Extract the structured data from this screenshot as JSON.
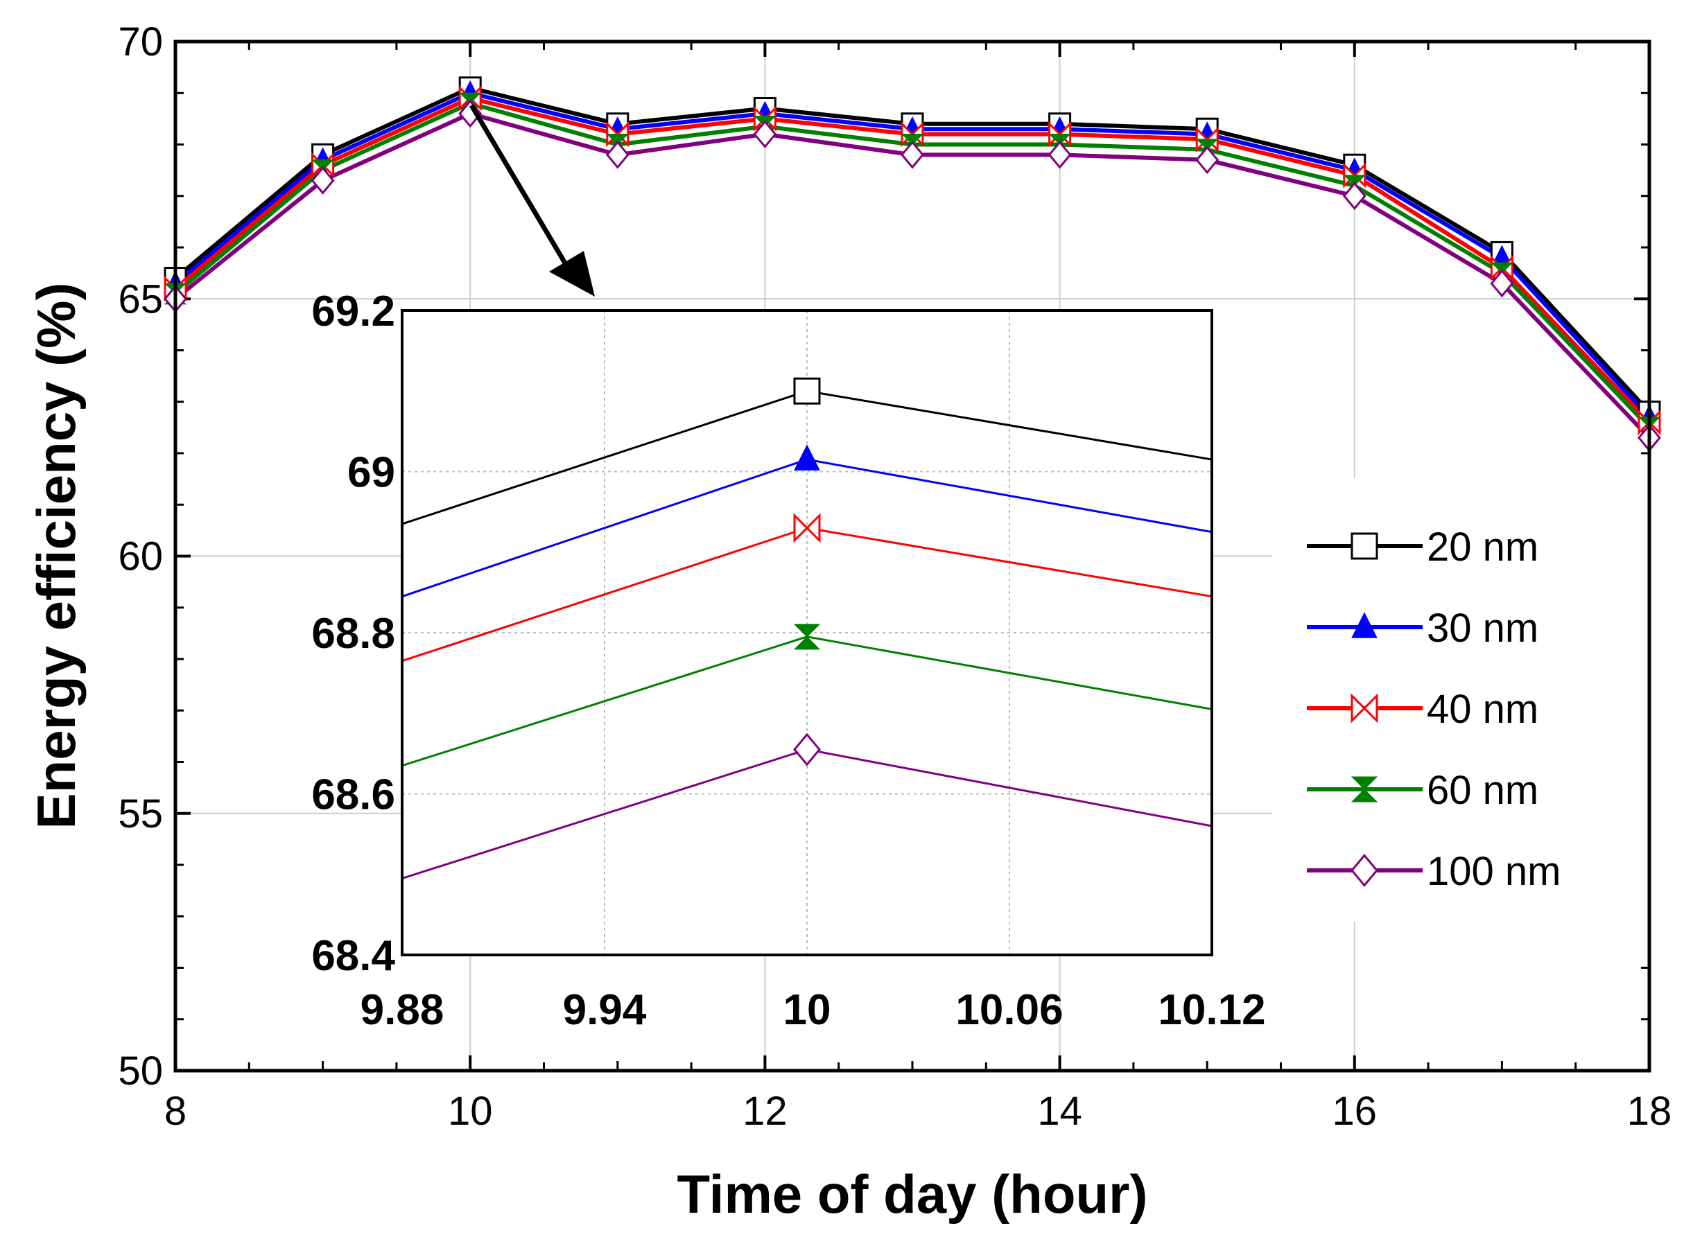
{
  "chart_data": [
    {
      "type": "line",
      "role": "main",
      "xlabel": "Time of day (hour)",
      "ylabel": "Energy efficiency (%)",
      "xlim": [
        8,
        18
      ],
      "ylim": [
        50,
        70
      ],
      "xticks": [
        8,
        10,
        12,
        14,
        16,
        18
      ],
      "yticks": [
        50,
        55,
        60,
        65,
        70
      ],
      "xtick_labels": [
        "8",
        "10",
        "12",
        "14",
        "16",
        "18"
      ],
      "ytick_labels": [
        "50",
        "55",
        "60",
        "65",
        "70"
      ],
      "grid": true,
      "legend_position": "right",
      "x": [
        8,
        9,
        10,
        11,
        12,
        13,
        14,
        15,
        16,
        17,
        18
      ],
      "series": [
        {
          "name": "20 nm",
          "color": "#000000",
          "marker": "square",
          "values": [
            65.4,
            67.8,
            69.1,
            68.4,
            68.7,
            68.4,
            68.4,
            68.3,
            67.6,
            65.9,
            62.8
          ]
        },
        {
          "name": "30 nm",
          "color": "#0000ff",
          "marker": "triangle",
          "values": [
            65.3,
            67.7,
            69.0,
            68.3,
            68.6,
            68.3,
            68.3,
            68.2,
            67.5,
            65.8,
            62.7
          ]
        },
        {
          "name": "40 nm",
          "color": "#ff0000",
          "marker": "bowtie",
          "values": [
            65.2,
            67.6,
            68.9,
            68.2,
            68.5,
            68.2,
            68.2,
            68.1,
            67.4,
            65.6,
            62.6
          ]
        },
        {
          "name": "60 nm",
          "color": "#008000",
          "marker": "hourglass",
          "values": [
            65.1,
            67.5,
            68.8,
            68.0,
            68.35,
            68.0,
            68.0,
            67.9,
            67.2,
            65.5,
            62.5
          ]
        },
        {
          "name": "100 nm",
          "color": "#800080",
          "marker": "diamond",
          "values": [
            65.0,
            67.3,
            68.6,
            67.8,
            68.2,
            67.8,
            67.8,
            67.7,
            67.0,
            65.3,
            62.3
          ]
        }
      ]
    },
    {
      "type": "line",
      "role": "inset",
      "xlim": [
        9.88,
        10.12
      ],
      "ylim": [
        68.4,
        69.2
      ],
      "xticks": [
        9.88,
        9.94,
        10,
        10.06,
        10.12
      ],
      "yticks": [
        68.4,
        68.6,
        68.8,
        69,
        69.2
      ],
      "xtick_labels": [
        "9.88",
        "9.94",
        "10",
        "10.06",
        "10.12"
      ],
      "ytick_labels": [
        "68.4",
        "68.6",
        "68.8",
        "69",
        "69.2"
      ],
      "grid": true,
      "x": [
        9.88,
        10,
        10.12
      ],
      "series": [
        {
          "name": "20 nm",
          "color": "#000000",
          "marker": "square",
          "values": [
            68.935,
            69.1,
            69.015
          ]
        },
        {
          "name": "30 nm",
          "color": "#0000ff",
          "marker": "triangle",
          "values": [
            68.845,
            69.015,
            68.925
          ]
        },
        {
          "name": "40 nm",
          "color": "#ff0000",
          "marker": "bowtie",
          "values": [
            68.765,
            68.93,
            68.845
          ]
        },
        {
          "name": "60 nm",
          "color": "#008000",
          "marker": "hourglass",
          "values": [
            68.635,
            68.795,
            68.705
          ]
        },
        {
          "name": "100 nm",
          "color": "#800080",
          "marker": "diamond",
          "values": [
            68.495,
            68.655,
            68.56
          ]
        }
      ]
    }
  ]
}
